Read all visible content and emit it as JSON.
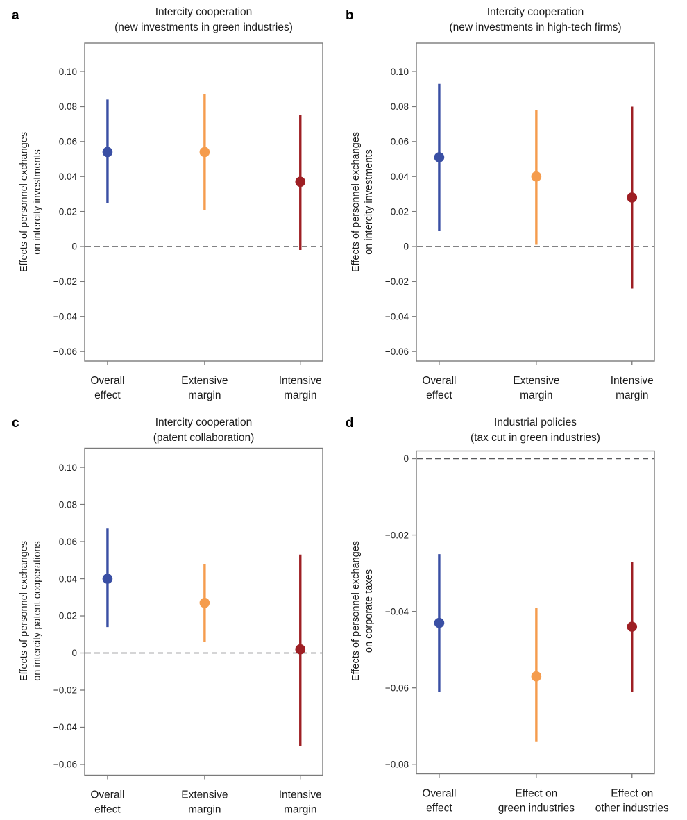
{
  "figure": {
    "background": "#ffffff",
    "colors": {
      "blue": "#3A4FA4",
      "orange": "#F59C4D",
      "red": "#9E1F24",
      "axis": "#7a7a7a",
      "zero_line": "#58595B",
      "tick_text": "#222222",
      "title_text": "#1a1a1a"
    }
  },
  "chart_data": [
    {
      "id": "a",
      "panel_label": "a",
      "type": "scatter",
      "title_line1": "Intercity cooperation",
      "title_line2": "(new investments in green industries)",
      "ylabel_line1": "Effects of personnel exchanges",
      "ylabel_line2": "on intercity investments",
      "categories": [
        [
          "Overall",
          "effect"
        ],
        [
          "Extensive",
          "margin"
        ],
        [
          "Intensive",
          "margin"
        ]
      ],
      "yticks": [
        0.1,
        0.08,
        0.06,
        0.04,
        0.02,
        0,
        -0.02,
        -0.04,
        -0.06
      ],
      "ylim": [
        -0.0655,
        0.1163
      ],
      "zero_line": true,
      "grid": false,
      "legend": false,
      "series": [
        {
          "name": "Overall effect",
          "color": "blue",
          "estimate": 0.054,
          "ci_low": 0.025,
          "ci_high": 0.084
        },
        {
          "name": "Extensive margin",
          "color": "orange",
          "estimate": 0.054,
          "ci_low": 0.021,
          "ci_high": 0.087
        },
        {
          "name": "Intensive margin",
          "color": "red",
          "estimate": 0.037,
          "ci_low": -0.002,
          "ci_high": 0.075
        }
      ]
    },
    {
      "id": "b",
      "panel_label": "b",
      "type": "scatter",
      "title_line1": "Intercity cooperation",
      "title_line2": "(new investments in high-tech firms)",
      "ylabel_line1": "Effects of personnel exchanges",
      "ylabel_line2": "on intercity investments",
      "categories": [
        [
          "Overall",
          "effect"
        ],
        [
          "Extensive",
          "margin"
        ],
        [
          "Intensive",
          "margin"
        ]
      ],
      "yticks": [
        0.1,
        0.08,
        0.06,
        0.04,
        0.02,
        0,
        -0.02,
        -0.04,
        -0.06
      ],
      "ylim": [
        -0.0655,
        0.1163
      ],
      "zero_line": true,
      "grid": false,
      "legend": false,
      "series": [
        {
          "name": "Overall effect",
          "color": "blue",
          "estimate": 0.051,
          "ci_low": 0.009,
          "ci_high": 0.093
        },
        {
          "name": "Extensive margin",
          "color": "orange",
          "estimate": 0.04,
          "ci_low": 0.001,
          "ci_high": 0.078
        },
        {
          "name": "Intensive margin",
          "color": "red",
          "estimate": 0.028,
          "ci_low": -0.024,
          "ci_high": 0.08
        }
      ]
    },
    {
      "id": "c",
      "panel_label": "c",
      "type": "scatter",
      "title_line1": "Intercity cooperation",
      "title_line2": "(patent collaboration)",
      "ylabel_line1": "Effects of personnel exchanges",
      "ylabel_line2": "on intercity patent cooperations",
      "categories": [
        [
          "Overall",
          "effect"
        ],
        [
          "Extensive",
          "margin"
        ],
        [
          "Intensive",
          "margin"
        ]
      ],
      "yticks": [
        0.1,
        0.08,
        0.06,
        0.04,
        0.02,
        0,
        -0.02,
        -0.04,
        -0.06
      ],
      "ylim": [
        -0.0658,
        0.1103
      ],
      "zero_line": true,
      "grid": false,
      "legend": false,
      "series": [
        {
          "name": "Overall effect",
          "color": "blue",
          "estimate": 0.04,
          "ci_low": 0.014,
          "ci_high": 0.067
        },
        {
          "name": "Extensive margin",
          "color": "orange",
          "estimate": 0.027,
          "ci_low": 0.006,
          "ci_high": 0.048
        },
        {
          "name": "Intensive margin",
          "color": "red",
          "estimate": 0.002,
          "ci_low": -0.05,
          "ci_high": 0.053
        }
      ]
    },
    {
      "id": "d",
      "panel_label": "d",
      "type": "scatter",
      "title_line1": "Industrial policies",
      "title_line2": "(tax cut in green industries)",
      "ylabel_line1": "Effects of personnel exchanges",
      "ylabel_line2": "on corporate taxes",
      "categories": [
        [
          "Overall",
          "effect"
        ],
        [
          "Effect on",
          "green industries"
        ],
        [
          "Effect on",
          "other industries"
        ]
      ],
      "yticks": [
        0,
        -0.02,
        -0.04,
        -0.06,
        -0.08
      ],
      "ylim": [
        -0.0825,
        0.002
      ],
      "zero_line": true,
      "grid": false,
      "legend": false,
      "series": [
        {
          "name": "Overall effect",
          "color": "blue",
          "estimate": -0.043,
          "ci_low": -0.061,
          "ci_high": -0.025
        },
        {
          "name": "Effect on green industries",
          "color": "orange",
          "estimate": -0.057,
          "ci_low": -0.074,
          "ci_high": -0.039
        },
        {
          "name": "Effect on other industries",
          "color": "red",
          "estimate": -0.044,
          "ci_low": -0.061,
          "ci_high": -0.027
        }
      ]
    }
  ]
}
